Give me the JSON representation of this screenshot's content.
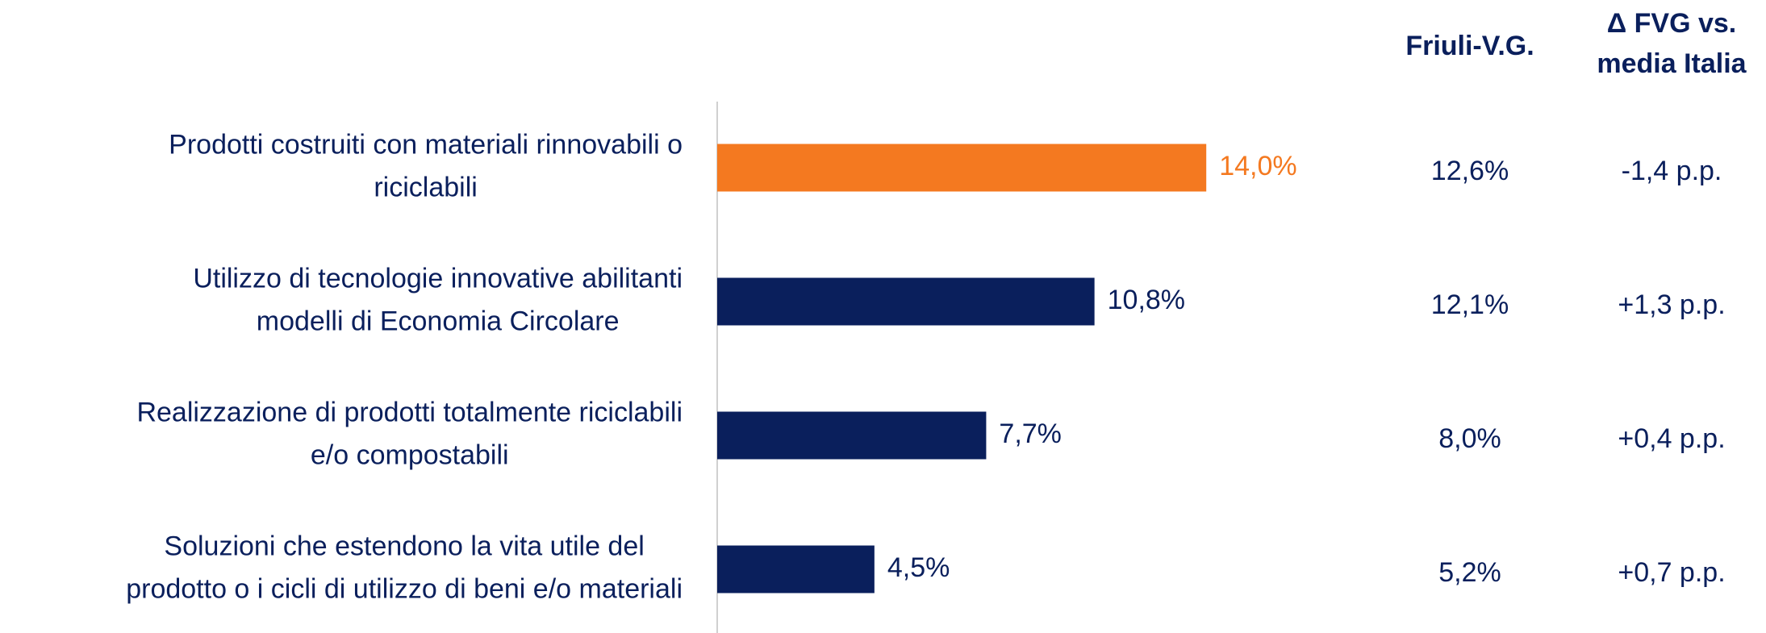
{
  "chart_data": {
    "type": "hbar",
    "categories": [
      [
        "Prodotti costruiti con materiali rinnovabili o",
        "riciclabili"
      ],
      [
        "Utilizzo di tecnologie innovative abilitanti",
        "modelli di Economia Circolare"
      ],
      [
        "Realizzazione di prodotti totalmente riciclabili",
        "e/o compostabili"
      ],
      [
        "Soluzioni che estendono la vita utile del",
        "prodotto o i cicli di utilizzo di beni e/o materiali"
      ]
    ],
    "values": [
      14.0,
      10.8,
      7.7,
      4.5
    ],
    "value_labels": [
      "14,0%",
      "10,8%",
      "7,7%",
      "4,5%"
    ],
    "colors": [
      "#f47920",
      "#0a1f5c",
      "#0a1f5c",
      "#0a1f5c"
    ],
    "xlim": [
      0,
      20
    ],
    "columns": [
      {
        "header": [
          "Friuli-V.G."
        ],
        "values": [
          "12,6%",
          "12,1%",
          "8,0%",
          "5,2%"
        ]
      },
      {
        "header": [
          "Δ FVG vs.",
          "media Italia"
        ],
        "values": [
          "-1,4 p.p.",
          "+1,3 p.p.",
          "+0,4 p.p.",
          "+0,7 p.p."
        ]
      }
    ]
  }
}
